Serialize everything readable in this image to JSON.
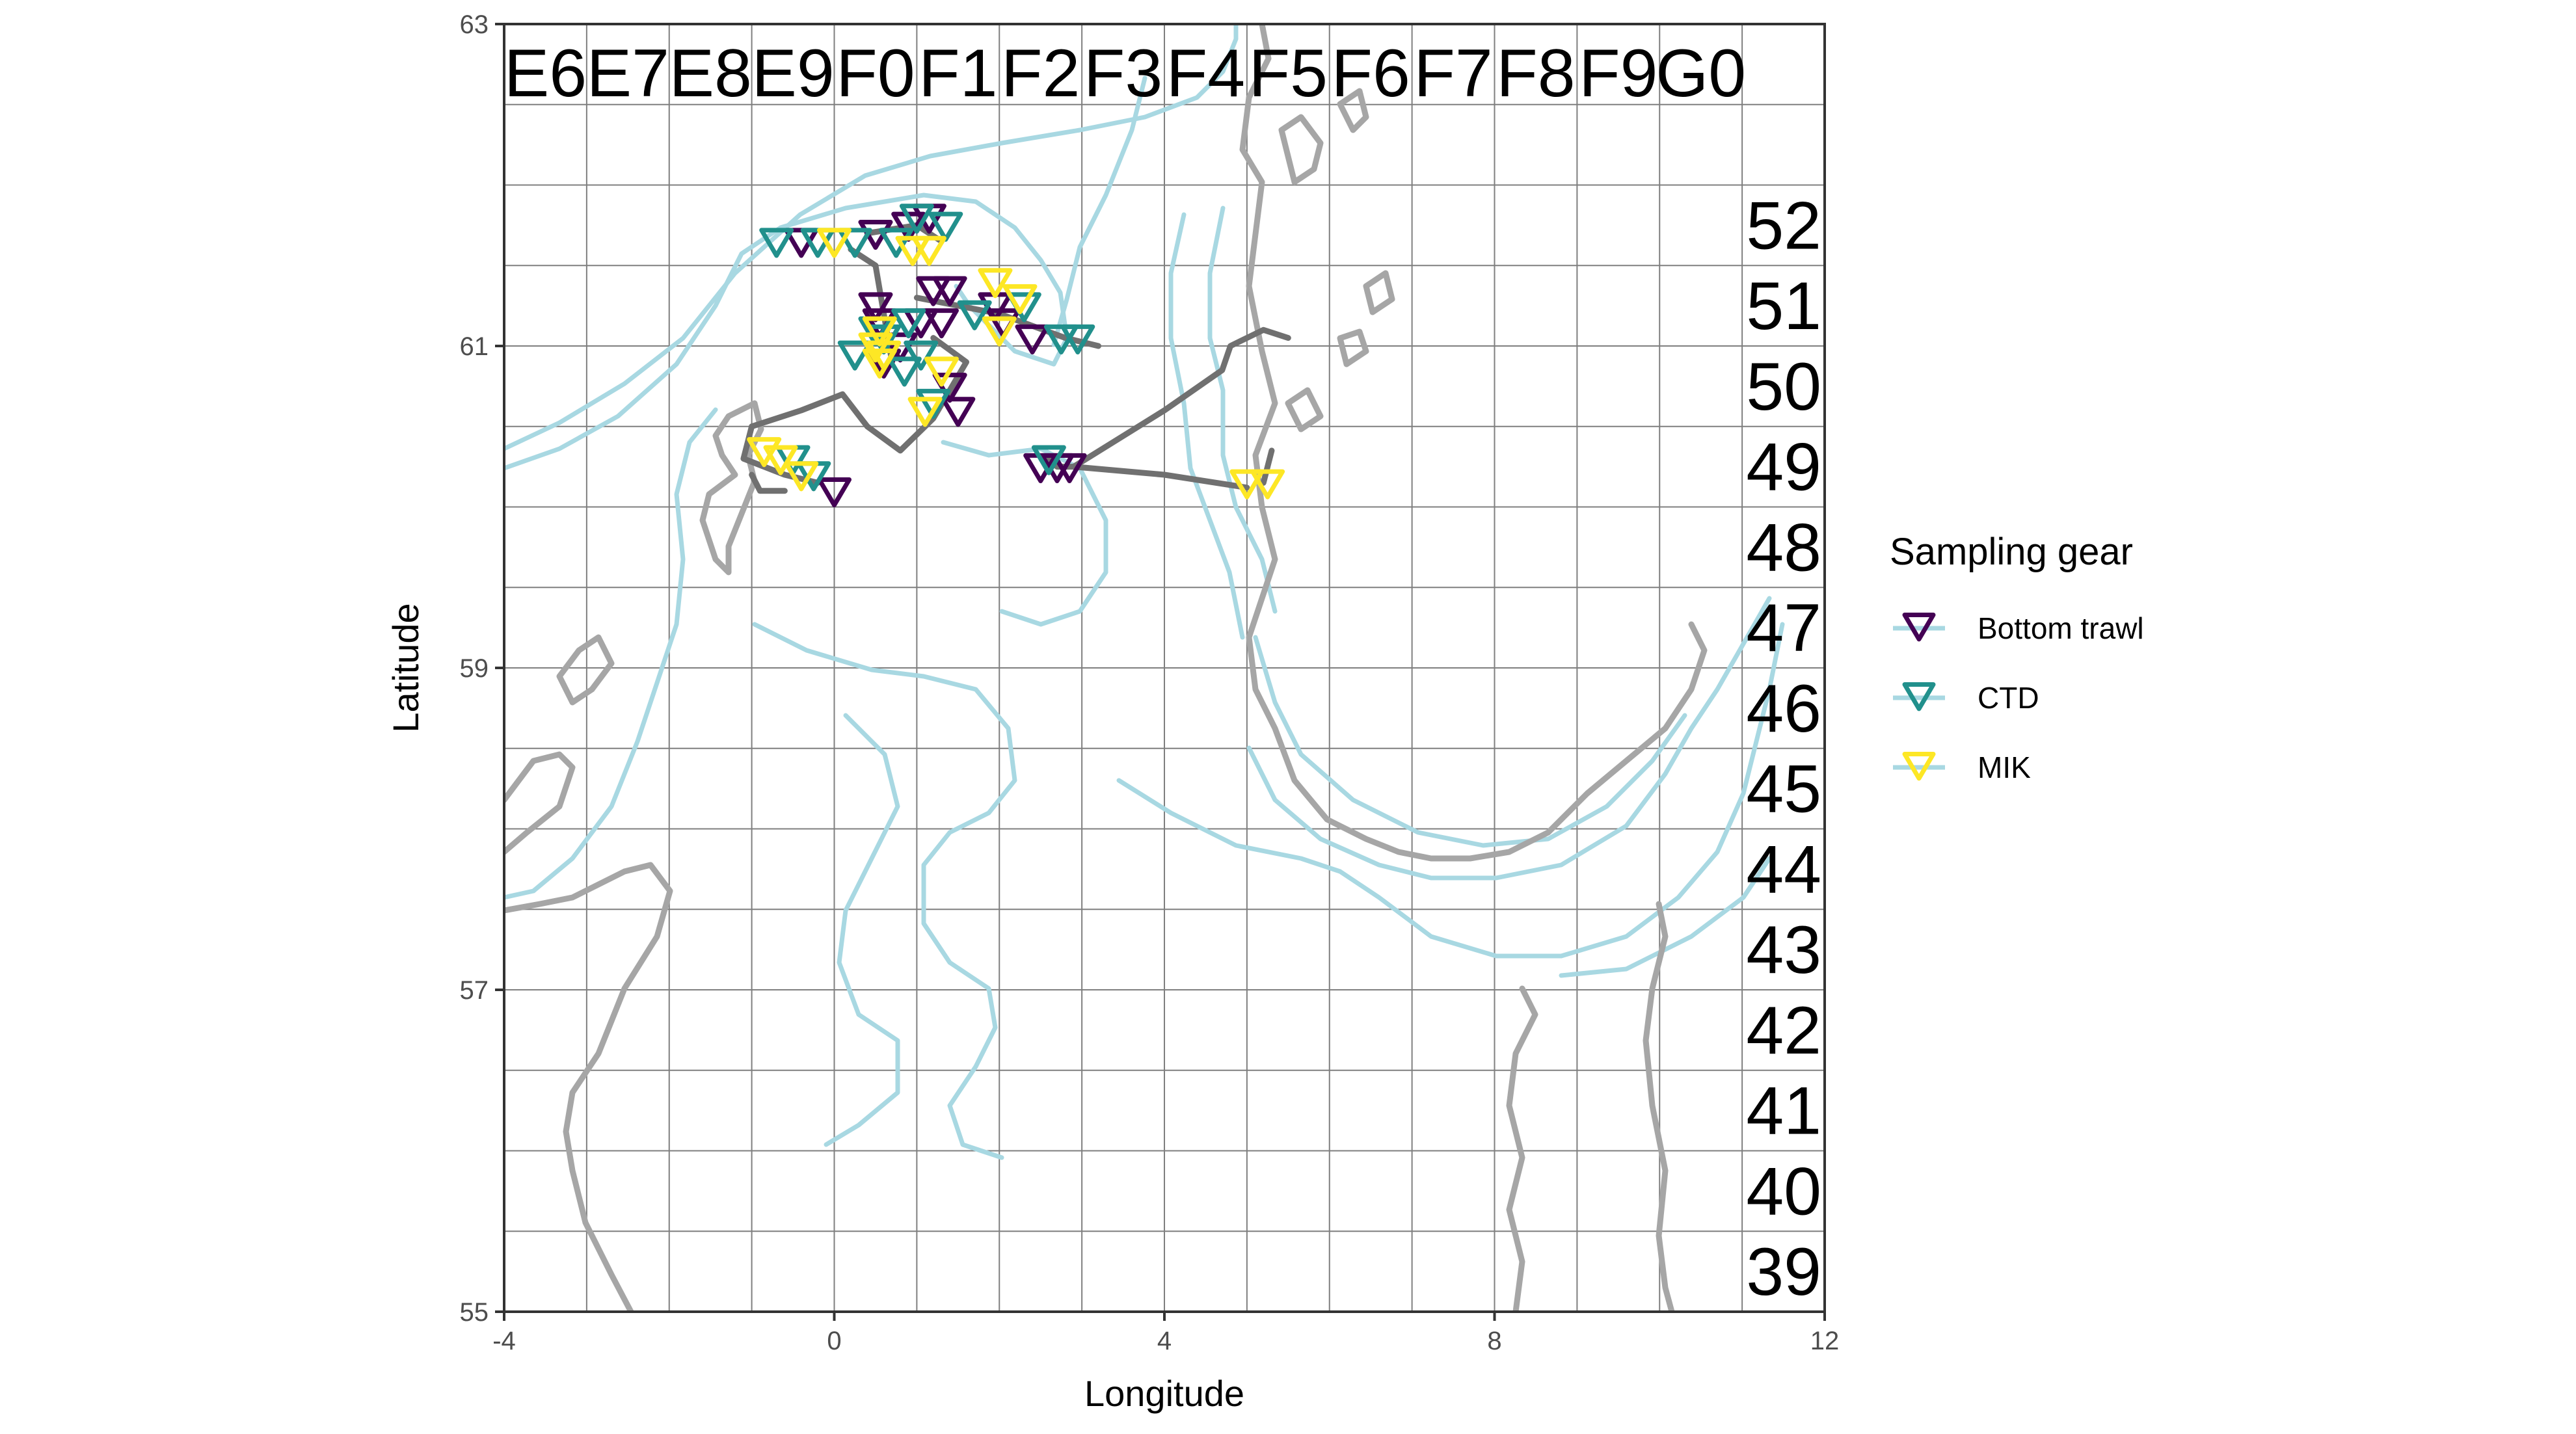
{
  "chart_data": {
    "type": "scatter",
    "xlabel": "Longitude",
    "ylabel": "Latitude",
    "xlim": [
      -4,
      12
    ],
    "ylim": [
      55,
      63
    ],
    "x_ticks": [
      -4,
      0,
      4,
      8,
      12
    ],
    "y_ticks": [
      55,
      57,
      59,
      61,
      63
    ],
    "x_tick_labels": [
      "-4",
      "0",
      "4",
      "8",
      "12"
    ],
    "y_tick_labels": [
      "55",
      "57",
      "59",
      "61",
      "63"
    ],
    "grid": true,
    "ices_columns": [
      {
        "label": "E6",
        "lon": -3.5
      },
      {
        "label": "E7",
        "lon": -2.5
      },
      {
        "label": "E8",
        "lon": -1.5
      },
      {
        "label": "E9",
        "lon": -0.5
      },
      {
        "label": "F0",
        "lon": 0.5
      },
      {
        "label": "F1",
        "lon": 1.5
      },
      {
        "label": "F2",
        "lon": 2.5
      },
      {
        "label": "F3",
        "lon": 3.5
      },
      {
        "label": "F4",
        "lon": 4.5
      },
      {
        "label": "F5",
        "lon": 5.5
      },
      {
        "label": "F6",
        "lon": 6.5
      },
      {
        "label": "F7",
        "lon": 7.5
      },
      {
        "label": "F8",
        "lon": 8.5
      },
      {
        "label": "F9",
        "lon": 9.5
      },
      {
        "label": "G0",
        "lon": 10.5
      }
    ],
    "ices_rows": [
      {
        "label": "52",
        "lat": 61.75
      },
      {
        "label": "51",
        "lat": 61.25
      },
      {
        "label": "50",
        "lat": 60.75
      },
      {
        "label": "49",
        "lat": 60.25
      },
      {
        "label": "48",
        "lat": 59.75
      },
      {
        "label": "47",
        "lat": 59.25
      },
      {
        "label": "46",
        "lat": 58.75
      },
      {
        "label": "45",
        "lat": 58.25
      },
      {
        "label": "44",
        "lat": 57.75
      },
      {
        "label": "43",
        "lat": 57.25
      },
      {
        "label": "42",
        "lat": 56.75
      },
      {
        "label": "41",
        "lat": 56.25
      },
      {
        "label": "40",
        "lat": 55.75
      },
      {
        "label": "39",
        "lat": 55.25
      }
    ],
    "legend": {
      "title": "Sampling gear",
      "position": "right",
      "entries": [
        {
          "label": "Bottom trawl",
          "color": "#440154"
        },
        {
          "label": "CTD",
          "color": "#21908C"
        },
        {
          "label": "MIK",
          "color": "#FDE725"
        }
      ]
    },
    "colors": {
      "coastline": "#a6a6a6",
      "depth_contour": "#a8d8e2",
      "cruise_track": "#707070",
      "grid": "#7f7f7f"
    },
    "cruise_track": [
      [
        [
          -1.0,
          60.5
        ],
        [
          -0.4,
          60.6
        ],
        [
          0.1,
          60.7
        ],
        [
          0.4,
          60.5
        ],
        [
          0.8,
          60.35
        ],
        [
          1.2,
          60.55
        ],
        [
          1.6,
          60.9
        ],
        [
          1.2,
          61.05
        ]
      ],
      [
        [
          -1.0,
          60.5
        ],
        [
          -1.1,
          60.3
        ],
        [
          -0.6,
          60.2
        ],
        [
          -0.2,
          60.15
        ]
      ],
      [
        [
          -0.6,
          60.1
        ],
        [
          -0.9,
          60.1
        ],
        [
          -1.0,
          60.2
        ]
      ],
      [
        [
          0.2,
          61.6
        ],
        [
          0.5,
          61.5
        ],
        [
          0.6,
          61.2
        ],
        [
          0.7,
          60.9
        ]
      ],
      [
        [
          2.6,
          60.3
        ],
        [
          2.7,
          60.25
        ],
        [
          2.9,
          60.25
        ]
      ],
      [
        [
          2.9,
          60.25
        ],
        [
          4.0,
          60.6
        ],
        [
          4.7,
          60.85
        ],
        [
          4.8,
          61.0
        ],
        [
          5.2,
          61.1
        ],
        [
          5.5,
          61.05
        ]
      ],
      [
        [
          2.9,
          60.25
        ],
        [
          4.0,
          60.2
        ],
        [
          5.0,
          60.12
        ]
      ],
      [
        [
          5.2,
          60.15
        ],
        [
          5.3,
          60.35
        ]
      ],
      [
        [
          1.0,
          61.3
        ],
        [
          2.0,
          61.2
        ],
        [
          2.8,
          61.05
        ],
        [
          3.2,
          61.0
        ]
      ],
      [
        [
          0.4,
          61.7
        ],
        [
          1.0,
          61.75
        ],
        [
          1.3,
          61.65
        ]
      ]
    ],
    "series": [
      {
        "name": "Bottom trawl",
        "points": [
          [
            -0.4,
            61.65
          ],
          [
            0.5,
            61.7
          ],
          [
            0.9,
            61.75
          ],
          [
            1.15,
            61.8
          ],
          [
            0.5,
            61.25
          ],
          [
            0.55,
            61.15
          ],
          [
            1.2,
            61.35
          ],
          [
            1.4,
            61.35
          ],
          [
            1.3,
            61.15
          ],
          [
            1.05,
            61.15
          ],
          [
            1.95,
            61.25
          ],
          [
            2.05,
            61.15
          ],
          [
            2.4,
            61.05
          ],
          [
            0.8,
            61.0
          ],
          [
            0.6,
            60.9
          ],
          [
            1.4,
            60.75
          ],
          [
            1.5,
            60.6
          ],
          [
            0.0,
            60.1
          ],
          [
            2.5,
            60.25
          ],
          [
            2.7,
            60.25
          ],
          [
            2.85,
            60.25
          ]
        ]
      },
      {
        "name": "CTD",
        "points": [
          [
            -0.7,
            61.65
          ],
          [
            -0.2,
            61.65
          ],
          [
            0.25,
            61.65
          ],
          [
            0.75,
            61.65
          ],
          [
            1.0,
            61.8
          ],
          [
            1.35,
            61.75
          ],
          [
            0.5,
            61.1
          ],
          [
            0.9,
            61.15
          ],
          [
            1.7,
            61.2
          ],
          [
            2.3,
            61.25
          ],
          [
            2.75,
            61.05
          ],
          [
            2.95,
            61.05
          ],
          [
            0.25,
            60.95
          ],
          [
            0.6,
            61.05
          ],
          [
            0.85,
            60.85
          ],
          [
            1.05,
            60.95
          ],
          [
            1.2,
            60.65
          ],
          [
            -0.25,
            60.2
          ],
          [
            -0.5,
            60.3
          ],
          [
            2.6,
            60.3
          ]
        ]
      },
      {
        "name": "MIK",
        "points": [
          [
            0.0,
            61.65
          ],
          [
            0.95,
            61.6
          ],
          [
            1.15,
            61.6
          ],
          [
            0.55,
            61.1
          ],
          [
            0.5,
            61.0
          ],
          [
            0.55,
            60.9
          ],
          [
            0.6,
            60.95
          ],
          [
            1.3,
            60.85
          ],
          [
            1.1,
            60.6
          ],
          [
            1.95,
            61.4
          ],
          [
            2.0,
            61.1
          ],
          [
            2.25,
            61.3
          ],
          [
            -0.85,
            60.35
          ],
          [
            -0.65,
            60.3
          ],
          [
            -0.4,
            60.2
          ],
          [
            5.0,
            60.15
          ],
          [
            5.25,
            60.15
          ]
        ]
      }
    ]
  }
}
